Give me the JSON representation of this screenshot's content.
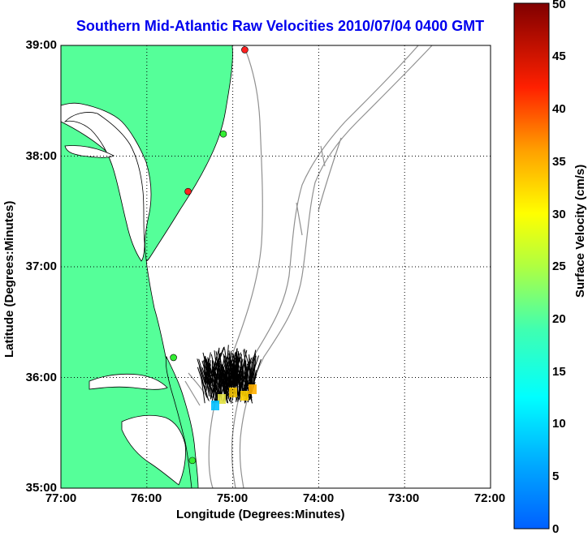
{
  "title": "Southern Mid-Atlantic Raw Velocities 2010/07/04 0400 GMT",
  "x_axis": {
    "label": "Longitude (Degrees:Minutes)",
    "ticks": [
      "77:00",
      "76:00",
      "75:00",
      "74:00",
      "73:00",
      "72:00"
    ]
  },
  "y_axis": {
    "label": "Latitude (Degrees:Minutes)",
    "ticks": [
      "39:00",
      "38:00",
      "37:00",
      "36:00",
      "35:00"
    ]
  },
  "colorbar": {
    "label": "Surface Velocity (cm/s)",
    "ticks": [
      "50",
      "45",
      "40",
      "35",
      "30",
      "25",
      "20",
      "15",
      "10",
      "5",
      "0"
    ],
    "min": 0,
    "max": 50,
    "colormap": "jet"
  },
  "map_extent": {
    "lon_min": -77,
    "lon_max": -72,
    "lat_min": 35,
    "lat_max": 39
  },
  "grid": "dotted",
  "colors": {
    "land": "#55ff99",
    "bathymetry": "#909090",
    "grid": "#000000"
  },
  "radar_sites": [
    {
      "lon": -74.86,
      "lat": 38.96,
      "color": "#ff2020"
    },
    {
      "lon": -75.11,
      "lat": 38.2,
      "color": "#33ee33"
    },
    {
      "lon": -75.52,
      "lat": 37.68,
      "color": "#ff2020"
    },
    {
      "lon": -75.69,
      "lat": 36.18,
      "color": "#33ee33"
    },
    {
      "lon": -75.47,
      "lat": 35.25,
      "color": "#33ee33"
    }
  ]
}
